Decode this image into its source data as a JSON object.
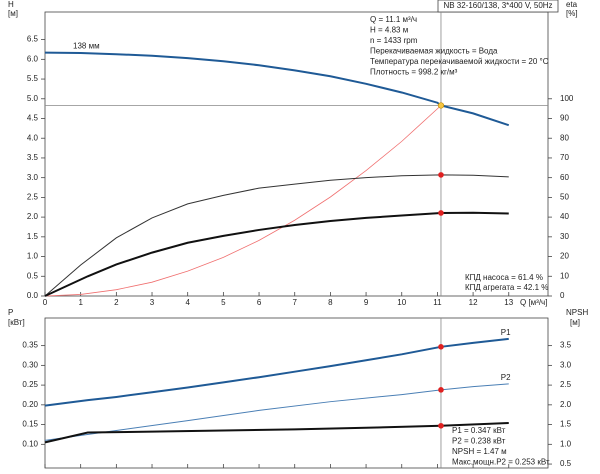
{
  "chart_data": [
    {
      "type": "line",
      "title": "NB 32-160/138, 3*400 V, 50Hz",
      "ylabel": "H",
      "ylabel_unit": "[м]",
      "y2label": "eta",
      "y2label_unit": "[%]",
      "xlabel": "Q [м³/ч]",
      "xlim": [
        0,
        14.1
      ],
      "ylim": [
        0,
        7.2
      ],
      "y2lim": [
        0,
        144
      ],
      "xticks": [
        0,
        1,
        2,
        3,
        4,
        5,
        6,
        7,
        8,
        9,
        10,
        11,
        12,
        13
      ],
      "yticks": [
        {
          "value": 0,
          "label": "0.0"
        },
        0.5,
        {
          "value": 1,
          "label": "1.0"
        },
        1.5,
        {
          "value": 2,
          "label": "2.0"
        },
        2.5,
        {
          "value": 3,
          "label": "3.0"
        },
        3.5,
        {
          "value": 4,
          "label": "4.0"
        },
        4.5,
        {
          "value": 5,
          "label": "5.0"
        },
        5.5,
        {
          "value": 6,
          "label": "6.0"
        },
        6.5
      ],
      "y2ticks": [
        0,
        10,
        20,
        30,
        40,
        50,
        60,
        70,
        80,
        90,
        100
      ],
      "ref_x": 11.1,
      "ref_y": 4.83,
      "series": [
        {
          "name": "138 мм",
          "color": "#1f5a96",
          "width": 2,
          "x": [
            0,
            1,
            2,
            3,
            4,
            5,
            6,
            7,
            8,
            9,
            10,
            11,
            11.1,
            12,
            13
          ],
          "values": [
            6.17,
            6.16,
            6.13,
            6.09,
            6.03,
            5.95,
            5.85,
            5.72,
            5.57,
            5.38,
            5.16,
            4.9,
            4.83,
            4.63,
            4.33
          ]
        },
        {
          "color": "#f07070",
          "width": 0.8,
          "x": [
            0,
            1,
            2,
            3,
            4,
            5,
            6,
            7,
            8,
            9,
            10,
            11.1
          ],
          "values": [
            0,
            0.04,
            0.16,
            0.35,
            0.63,
            0.98,
            1.41,
            1.92,
            2.51,
            3.18,
            3.92,
            4.83
          ]
        },
        {
          "color": "#333333",
          "width": 1,
          "axis": "y2",
          "x": [
            0,
            1,
            2,
            3,
            4,
            5,
            6,
            7,
            8,
            9,
            10,
            11.1,
            12,
            13
          ],
          "values": [
            0,
            15.7,
            29.5,
            39.6,
            46.7,
            51,
            54.7,
            56.7,
            58.7,
            60,
            61,
            61.4,
            61.2,
            60.4
          ]
        },
        {
          "color": "#111111",
          "width": 2,
          "axis": "y2",
          "x": [
            0,
            1.2,
            2,
            3,
            4,
            5,
            6,
            7,
            8,
            9,
            10,
            11.1,
            12,
            13
          ],
          "values": [
            0,
            10,
            16,
            22,
            27,
            30.5,
            33.5,
            36,
            38,
            39.6,
            40.8,
            42.1,
            42.2,
            41.8
          ]
        }
      ],
      "markers": [
        {
          "x": 11.1,
          "y": 4.83,
          "color": "#f5c542"
        },
        {
          "x": 11.1,
          "y": 61.4,
          "axis": "y2",
          "color": "#e02020"
        },
        {
          "x": 11.1,
          "y": 42.1,
          "axis": "y2",
          "color": "#e02020"
        }
      ],
      "info": [
        "Q = 11.1 м³/ч",
        "H = 4.83 м",
        "n = 1433 rpm",
        "Перекачиваемая жидкость = Вода",
        "Температура перекачиваемой жидкости = 20 °C",
        "Плотность = 998.2 кг/м³"
      ],
      "notes": [
        "КПД насоса = 61.4 %",
        "КПД агрегата = 42.1 %"
      ]
    },
    {
      "type": "line",
      "ylabel": "P",
      "ylabel_unit": "[кВт]",
      "y2label": "NPSH",
      "y2label_unit": "[м]",
      "xlim": [
        0,
        14.1
      ],
      "ylim": [
        0.04,
        0.42
      ],
      "y2lim": [
        0.4,
        4.2
      ],
      "xticks": [
        0,
        1,
        2,
        3,
        4,
        5,
        6,
        7,
        8,
        9,
        10,
        11,
        12,
        13
      ],
      "yticks": [
        {
          "value": 0.1,
          "label": "0.10"
        },
        0.15,
        {
          "value": 0.2,
          "label": "0.20"
        },
        0.25,
        {
          "value": 0.3,
          "label": "0.30"
        },
        0.35
      ],
      "y2ticks": [
        0.5,
        {
          "value": 1,
          "label": "1.0"
        },
        1.5,
        {
          "value": 2,
          "label": "2.0"
        },
        2.5,
        {
          "value": 3,
          "label": "3.0"
        },
        3.5
      ],
      "ref_x": 11.1,
      "series": [
        {
          "name": "P1",
          "color": "#1f5a96",
          "width": 2,
          "x": [
            0,
            1.2,
            2,
            3,
            4,
            5,
            6,
            7,
            8,
            9,
            10,
            11.1,
            12,
            13
          ],
          "values": [
            0.198,
            0.212,
            0.22,
            0.232,
            0.244,
            0.257,
            0.27,
            0.284,
            0.298,
            0.313,
            0.328,
            0.347,
            0.357,
            0.367
          ]
        },
        {
          "name": "P2",
          "color": "#4a7fb5",
          "width": 1,
          "x": [
            0,
            2,
            4,
            6,
            8,
            10,
            11.1,
            12,
            13
          ],
          "values": [
            0.11,
            0.135,
            0.16,
            0.186,
            0.208,
            0.226,
            0.238,
            0.246,
            0.253
          ]
        },
        {
          "color": "#111111",
          "width": 2,
          "axis": "y2",
          "x": [
            0,
            1.2,
            3,
            5,
            7,
            9,
            11.1,
            13
          ],
          "values": [
            1.05,
            1.3,
            1.32,
            1.35,
            1.38,
            1.42,
            1.47,
            1.54
          ]
        }
      ],
      "markers": [
        {
          "x": 11.1,
          "y": 0.347,
          "color": "#e02020"
        },
        {
          "x": 11.1,
          "y": 0.238,
          "color": "#e02020"
        },
        {
          "x": 11.1,
          "y": 1.47,
          "axis": "y2",
          "color": "#e02020"
        }
      ],
      "info": [
        "P1 = 0.347 кВт",
        "P2 = 0.238 кВт",
        "NPSH = 1.47 м",
        "Макс.мощн.P2 = 0.253 кВт"
      ]
    }
  ]
}
